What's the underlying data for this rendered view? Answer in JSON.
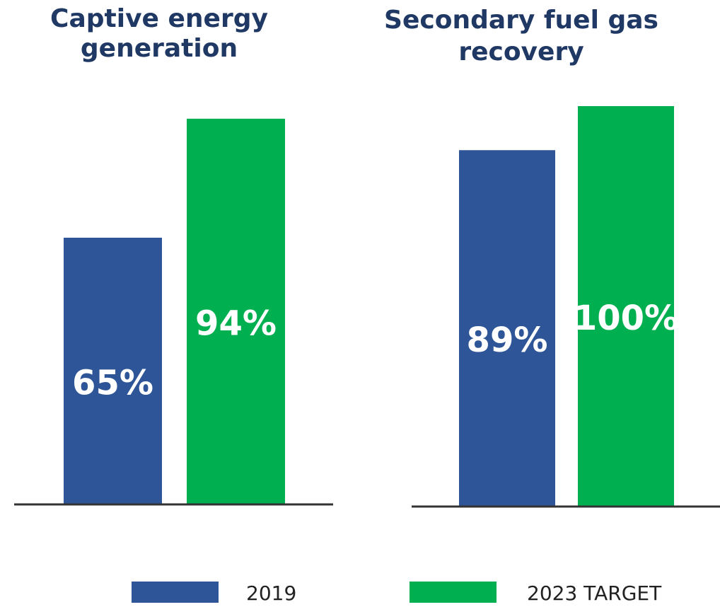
{
  "chart_data": [
    {
      "type": "bar",
      "title": [
        "Captive energy",
        "generation"
      ],
      "values": [
        65,
        94
      ],
      "value_labels": [
        "65%",
        "94%"
      ],
      "ylim": [
        0,
        100
      ]
    },
    {
      "type": "bar",
      "title": [
        "Secondary fuel gas",
        "recovery"
      ],
      "values": [
        89,
        100
      ],
      "value_labels": [
        "89%",
        "100%"
      ],
      "ylim": [
        0,
        100
      ]
    }
  ],
  "legend": {
    "series": [
      {
        "name": "2019",
        "color": "#2e5597"
      },
      {
        "name": "2023 TARGET",
        "color": "#00b050"
      }
    ]
  }
}
